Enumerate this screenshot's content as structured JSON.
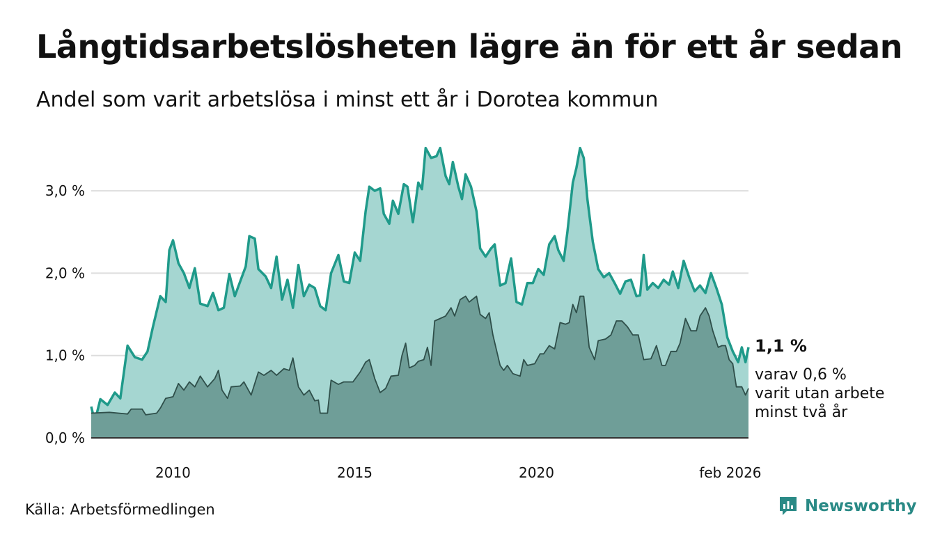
{
  "title": "Långtidsarbetslösheten lägre än för ett år sedan",
  "subtitle": "Andel som varit arbetslösa i minst ett år i Dorotea kommun",
  "source": "Källa: Arbetsförmedlingen",
  "brand": "Newsworthy",
  "colors": {
    "main_line": "#1f9a8a",
    "main_fill": "#a5d6d1",
    "sub_line": "#2f4f4a",
    "sub_fill": "#6f9e98",
    "grid": "#dddddd",
    "brand": "#2a8a86"
  },
  "chart_data": {
    "type": "area",
    "title": "Andel som varit arbetslösa i minst ett år i Dorotea kommun",
    "unit": "%",
    "x_start": 2008.0,
    "x_end": 2026.083,
    "x_step_months": 1,
    "ylim": [
      0,
      3.6
    ],
    "y_ticks": [
      {
        "value": 0,
        "label": "0,0 %"
      },
      {
        "value": 1,
        "label": "1,0 %"
      },
      {
        "value": 2,
        "label": "2,0 %"
      },
      {
        "value": 3,
        "label": "3,0 %"
      }
    ],
    "x_ticks": [
      {
        "value": 2010.25,
        "label": "2010"
      },
      {
        "value": 2015.25,
        "label": "2015"
      },
      {
        "value": 2020.25,
        "label": "2020"
      },
      {
        "value": 2025.583,
        "label": "feb 2026"
      }
    ],
    "grid": true,
    "series": [
      {
        "name": "Arbetslösa minst ett år",
        "end_label": "1,1 %",
        "keypoints": [
          [
            2008.0,
            0.38
          ],
          [
            2008.1,
            0.2
          ],
          [
            2008.25,
            0.47
          ],
          [
            2008.45,
            0.4
          ],
          [
            2008.65,
            0.55
          ],
          [
            2008.8,
            0.48
          ],
          [
            2009.0,
            1.12
          ],
          [
            2009.2,
            0.98
          ],
          [
            2009.4,
            0.95
          ],
          [
            2009.55,
            1.05
          ],
          [
            2009.7,
            1.35
          ],
          [
            2009.9,
            1.72
          ],
          [
            2010.05,
            1.65
          ],
          [
            2010.15,
            2.28
          ],
          [
            2010.25,
            2.4
          ],
          [
            2010.4,
            2.12
          ],
          [
            2010.55,
            2.0
          ],
          [
            2010.7,
            1.82
          ],
          [
            2010.85,
            2.06
          ],
          [
            2011.0,
            1.63
          ],
          [
            2011.2,
            1.6
          ],
          [
            2011.35,
            1.76
          ],
          [
            2011.5,
            1.55
          ],
          [
            2011.65,
            1.58
          ],
          [
            2011.8,
            1.99
          ],
          [
            2011.95,
            1.72
          ],
          [
            2012.1,
            1.9
          ],
          [
            2012.25,
            2.08
          ],
          [
            2012.35,
            2.45
          ],
          [
            2012.5,
            2.42
          ],
          [
            2012.6,
            2.05
          ],
          [
            2012.8,
            1.96
          ],
          [
            2012.95,
            1.82
          ],
          [
            2013.1,
            2.2
          ],
          [
            2013.25,
            1.68
          ],
          [
            2013.4,
            1.92
          ],
          [
            2013.55,
            1.58
          ],
          [
            2013.7,
            2.1
          ],
          [
            2013.85,
            1.72
          ],
          [
            2014.0,
            1.86
          ],
          [
            2014.15,
            1.82
          ],
          [
            2014.3,
            1.6
          ],
          [
            2014.45,
            1.55
          ],
          [
            2014.6,
            2.0
          ],
          [
            2014.8,
            2.22
          ],
          [
            2014.95,
            1.9
          ],
          [
            2015.1,
            1.88
          ],
          [
            2015.25,
            2.25
          ],
          [
            2015.4,
            2.15
          ],
          [
            2015.55,
            2.75
          ],
          [
            2015.65,
            3.05
          ],
          [
            2015.8,
            3.0
          ],
          [
            2015.95,
            3.03
          ],
          [
            2016.05,
            2.72
          ],
          [
            2016.2,
            2.6
          ],
          [
            2016.3,
            2.88
          ],
          [
            2016.45,
            2.72
          ],
          [
            2016.6,
            3.08
          ],
          [
            2016.7,
            3.05
          ],
          [
            2016.85,
            2.62
          ],
          [
            2017.0,
            3.1
          ],
          [
            2017.1,
            3.02
          ],
          [
            2017.2,
            3.52
          ],
          [
            2017.35,
            3.4
          ],
          [
            2017.5,
            3.42
          ],
          [
            2017.6,
            3.52
          ],
          [
            2017.75,
            3.18
          ],
          [
            2017.85,
            3.08
          ],
          [
            2017.95,
            3.35
          ],
          [
            2018.1,
            3.05
          ],
          [
            2018.2,
            2.9
          ],
          [
            2018.3,
            3.2
          ],
          [
            2018.45,
            3.05
          ],
          [
            2018.6,
            2.75
          ],
          [
            2018.7,
            2.3
          ],
          [
            2018.85,
            2.2
          ],
          [
            2019.0,
            2.3
          ],
          [
            2019.1,
            2.35
          ],
          [
            2019.25,
            1.85
          ],
          [
            2019.4,
            1.88
          ],
          [
            2019.55,
            2.18
          ],
          [
            2019.7,
            1.65
          ],
          [
            2019.85,
            1.62
          ],
          [
            2020.0,
            1.88
          ],
          [
            2020.15,
            1.88
          ],
          [
            2020.3,
            2.05
          ],
          [
            2020.45,
            1.98
          ],
          [
            2020.6,
            2.35
          ],
          [
            2020.75,
            2.45
          ],
          [
            2020.85,
            2.28
          ],
          [
            2021.0,
            2.15
          ],
          [
            2021.1,
            2.5
          ],
          [
            2021.25,
            3.1
          ],
          [
            2021.35,
            3.28
          ],
          [
            2021.45,
            3.52
          ],
          [
            2021.55,
            3.4
          ],
          [
            2021.65,
            2.9
          ],
          [
            2021.8,
            2.38
          ],
          [
            2021.95,
            2.05
          ],
          [
            2022.1,
            1.95
          ],
          [
            2022.25,
            2.0
          ],
          [
            2022.4,
            1.88
          ],
          [
            2022.55,
            1.75
          ],
          [
            2022.7,
            1.9
          ],
          [
            2022.85,
            1.92
          ],
          [
            2023.0,
            1.72
          ],
          [
            2023.1,
            1.73
          ],
          [
            2023.2,
            2.22
          ],
          [
            2023.3,
            1.8
          ],
          [
            2023.45,
            1.88
          ],
          [
            2023.6,
            1.82
          ],
          [
            2023.75,
            1.92
          ],
          [
            2023.9,
            1.86
          ],
          [
            2024.0,
            2.02
          ],
          [
            2024.15,
            1.82
          ],
          [
            2024.3,
            2.15
          ],
          [
            2024.45,
            1.95
          ],
          [
            2024.6,
            1.78
          ],
          [
            2024.75,
            1.85
          ],
          [
            2024.9,
            1.76
          ],
          [
            2025.05,
            2.0
          ],
          [
            2025.2,
            1.82
          ],
          [
            2025.35,
            1.62
          ],
          [
            2025.5,
            1.22
          ],
          [
            2025.65,
            1.05
          ],
          [
            2025.8,
            0.92
          ],
          [
            2025.9,
            1.1
          ],
          [
            2026.0,
            0.92
          ],
          [
            2026.083,
            1.1
          ]
        ]
      },
      {
        "name": "varav utan arbete minst två år",
        "end_label": "varav 0,6 %",
        "end_label_lines": [
          "varav 0,6 %",
          "varit utan arbete",
          "minst två år"
        ],
        "keypoints": [
          [
            2008.0,
            0.3
          ],
          [
            2008.5,
            0.31
          ],
          [
            2008.75,
            0.3
          ],
          [
            2009.0,
            0.29
          ],
          [
            2009.1,
            0.35
          ],
          [
            2009.4,
            0.35
          ],
          [
            2009.5,
            0.28
          ],
          [
            2009.8,
            0.3
          ],
          [
            2009.9,
            0.36
          ],
          [
            2010.05,
            0.48
          ],
          [
            2010.25,
            0.5
          ],
          [
            2010.4,
            0.66
          ],
          [
            2010.55,
            0.58
          ],
          [
            2010.7,
            0.68
          ],
          [
            2010.85,
            0.62
          ],
          [
            2011.0,
            0.75
          ],
          [
            2011.2,
            0.62
          ],
          [
            2011.4,
            0.72
          ],
          [
            2011.5,
            0.82
          ],
          [
            2011.6,
            0.58
          ],
          [
            2011.75,
            0.48
          ],
          [
            2011.85,
            0.62
          ],
          [
            2012.1,
            0.63
          ],
          [
            2012.2,
            0.68
          ],
          [
            2012.4,
            0.52
          ],
          [
            2012.6,
            0.8
          ],
          [
            2012.75,
            0.76
          ],
          [
            2012.95,
            0.82
          ],
          [
            2013.1,
            0.76
          ],
          [
            2013.3,
            0.84
          ],
          [
            2013.45,
            0.82
          ],
          [
            2013.55,
            0.97
          ],
          [
            2013.7,
            0.62
          ],
          [
            2013.85,
            0.52
          ],
          [
            2014.0,
            0.58
          ],
          [
            2014.15,
            0.45
          ],
          [
            2014.25,
            0.46
          ],
          [
            2014.3,
            0.3
          ],
          [
            2014.5,
            0.3
          ],
          [
            2014.6,
            0.7
          ],
          [
            2014.8,
            0.65
          ],
          [
            2014.95,
            0.68
          ],
          [
            2015.2,
            0.68
          ],
          [
            2015.4,
            0.8
          ],
          [
            2015.55,
            0.92
          ],
          [
            2015.65,
            0.95
          ],
          [
            2015.8,
            0.72
          ],
          [
            2015.95,
            0.55
          ],
          [
            2016.1,
            0.6
          ],
          [
            2016.25,
            0.75
          ],
          [
            2016.45,
            0.76
          ],
          [
            2016.55,
            1.0
          ],
          [
            2016.65,
            1.15
          ],
          [
            2016.75,
            0.85
          ],
          [
            2016.9,
            0.88
          ],
          [
            2017.0,
            0.93
          ],
          [
            2017.15,
            0.95
          ],
          [
            2017.25,
            1.1
          ],
          [
            2017.35,
            0.88
          ],
          [
            2017.45,
            1.42
          ],
          [
            2017.6,
            1.45
          ],
          [
            2017.75,
            1.48
          ],
          [
            2017.9,
            1.58
          ],
          [
            2018.0,
            1.48
          ],
          [
            2018.15,
            1.68
          ],
          [
            2018.3,
            1.72
          ],
          [
            2018.4,
            1.65
          ],
          [
            2018.6,
            1.72
          ],
          [
            2018.7,
            1.5
          ],
          [
            2018.85,
            1.45
          ],
          [
            2018.95,
            1.52
          ],
          [
            2019.05,
            1.25
          ],
          [
            2019.25,
            0.88
          ],
          [
            2019.35,
            0.82
          ],
          [
            2019.45,
            0.88
          ],
          [
            2019.6,
            0.78
          ],
          [
            2019.8,
            0.75
          ],
          [
            2019.9,
            0.95
          ],
          [
            2020.0,
            0.88
          ],
          [
            2020.2,
            0.9
          ],
          [
            2020.35,
            1.02
          ],
          [
            2020.45,
            1.02
          ],
          [
            2020.6,
            1.12
          ],
          [
            2020.75,
            1.08
          ],
          [
            2020.9,
            1.4
          ],
          [
            2021.05,
            1.38
          ],
          [
            2021.15,
            1.4
          ],
          [
            2021.25,
            1.62
          ],
          [
            2021.35,
            1.52
          ],
          [
            2021.45,
            1.72
          ],
          [
            2021.55,
            1.72
          ],
          [
            2021.7,
            1.1
          ],
          [
            2021.85,
            0.95
          ],
          [
            2021.95,
            1.18
          ],
          [
            2022.15,
            1.2
          ],
          [
            2022.3,
            1.25
          ],
          [
            2022.45,
            1.42
          ],
          [
            2022.6,
            1.42
          ],
          [
            2022.75,
            1.35
          ],
          [
            2022.9,
            1.25
          ],
          [
            2023.05,
            1.25
          ],
          [
            2023.2,
            0.95
          ],
          [
            2023.4,
            0.96
          ],
          [
            2023.55,
            1.12
          ],
          [
            2023.7,
            0.88
          ],
          [
            2023.8,
            0.88
          ],
          [
            2023.95,
            1.05
          ],
          [
            2024.1,
            1.05
          ],
          [
            2024.2,
            1.15
          ],
          [
            2024.35,
            1.45
          ],
          [
            2024.5,
            1.3
          ],
          [
            2024.65,
            1.3
          ],
          [
            2024.75,
            1.48
          ],
          [
            2024.9,
            1.58
          ],
          [
            2025.0,
            1.48
          ],
          [
            2025.1,
            1.3
          ],
          [
            2025.25,
            1.1
          ],
          [
            2025.35,
            1.12
          ],
          [
            2025.45,
            1.12
          ],
          [
            2025.55,
            0.95
          ],
          [
            2025.65,
            0.9
          ],
          [
            2025.75,
            0.62
          ],
          [
            2025.9,
            0.62
          ],
          [
            2026.0,
            0.52
          ],
          [
            2026.083,
            0.6
          ]
        ]
      }
    ]
  }
}
